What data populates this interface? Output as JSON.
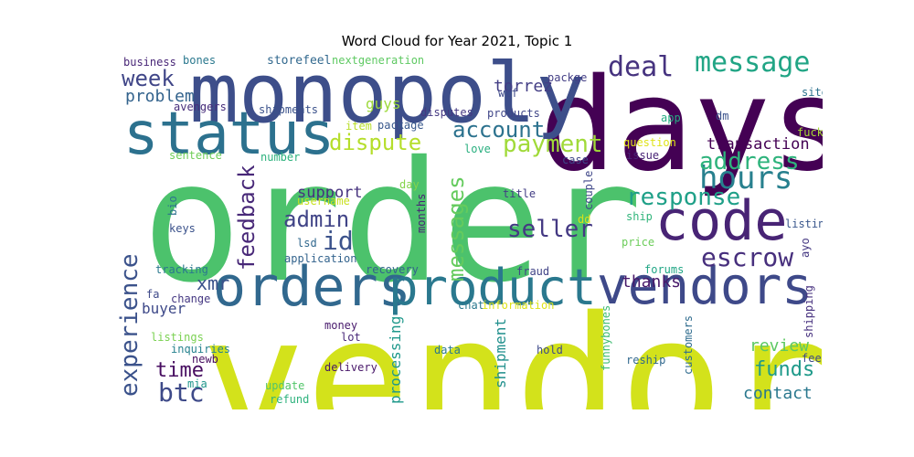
{
  "chart_data": {
    "type": "wordcloud",
    "title": "Word Cloud for Year 2021, Topic 1",
    "words": [
      {
        "text": "vendor",
        "weight": 100,
        "color": "#d3e21b",
        "vertical": false
      },
      {
        "text": "order",
        "weight": 96,
        "color": "#4cc26c",
        "vertical": false
      },
      {
        "text": "days",
        "weight": 72,
        "color": "#440154",
        "vertical": false
      },
      {
        "text": "monopoly",
        "weight": 52,
        "color": "#3d4e8a",
        "vertical": false
      },
      {
        "text": "orders",
        "weight": 48,
        "color": "#31688e",
        "vertical": false
      },
      {
        "text": "vendors",
        "weight": 44,
        "color": "#3e4989",
        "vertical": false
      },
      {
        "text": "product",
        "weight": 42,
        "color": "#2a788e",
        "vertical": false
      },
      {
        "text": "status",
        "weight": 42,
        "color": "#2c718e",
        "vertical": false
      },
      {
        "text": "code",
        "weight": 38,
        "color": "#482475",
        "vertical": false
      },
      {
        "text": "hours",
        "weight": 28,
        "color": "#27808e",
        "vertical": false
      },
      {
        "text": "dispute",
        "weight": 22,
        "color": "#b5de2b",
        "vertical": false
      },
      {
        "text": "payment",
        "weight": 22,
        "color": "#a0da39",
        "vertical": false
      },
      {
        "text": "deal",
        "weight": 22,
        "color": "#46337f",
        "vertical": false
      },
      {
        "text": "message",
        "weight": 22,
        "color": "#21a585",
        "vertical": false
      },
      {
        "text": "address",
        "weight": 22,
        "color": "#2eb37c",
        "vertical": false
      },
      {
        "text": "response",
        "weight": 20,
        "color": "#1fa088",
        "vertical": false
      },
      {
        "text": "seller",
        "weight": 20,
        "color": "#443983",
        "vertical": false
      },
      {
        "text": "escrow",
        "weight": 20,
        "color": "#472f7d",
        "vertical": false
      },
      {
        "text": "messages",
        "weight": 20,
        "color": "#65cb5e",
        "vertical": true
      },
      {
        "text": "feedback",
        "weight": 20,
        "color": "#482878",
        "vertical": true
      },
      {
        "text": "experience",
        "weight": 20,
        "color": "#3b528b",
        "vertical": true
      },
      {
        "text": "account",
        "weight": 18,
        "color": "#2c728e",
        "vertical": false
      },
      {
        "text": "week",
        "weight": 18,
        "color": "#404688",
        "vertical": false
      },
      {
        "text": "admin",
        "weight": 18,
        "color": "#414487",
        "vertical": false
      },
      {
        "text": "id",
        "weight": 18,
        "color": "#3b528b",
        "vertical": false
      },
      {
        "text": "btc",
        "weight": 18,
        "color": "#3e4a89",
        "vertical": false
      },
      {
        "text": "time",
        "weight": 18,
        "color": "#470d60",
        "vertical": false
      },
      {
        "text": "funds",
        "weight": 18,
        "color": "#1f9a8a",
        "vertical": false
      },
      {
        "text": "xmr",
        "weight": 16,
        "color": "#3b528b",
        "vertical": false
      },
      {
        "text": "problem",
        "weight": 15,
        "color": "#33638d",
        "vertical": false
      },
      {
        "text": "torrez",
        "weight": 15,
        "color": "#433e85",
        "vertical": false
      },
      {
        "text": "support",
        "weight": 15,
        "color": "#46327e",
        "vertical": false
      },
      {
        "text": "transaction",
        "weight": 15,
        "color": "#440154",
        "vertical": false
      },
      {
        "text": "thanks",
        "weight": 15,
        "color": "#48186a",
        "vertical": false
      },
      {
        "text": "review",
        "weight": 15,
        "color": "#5cc863",
        "vertical": false
      },
      {
        "text": "contact",
        "weight": 15,
        "color": "#2a788e",
        "vertical": false
      },
      {
        "text": "processing",
        "weight": 15,
        "color": "#1f988b",
        "vertical": true
      },
      {
        "text": "shipment",
        "weight": 15,
        "color": "#21908d",
        "vertical": true
      },
      {
        "text": "guys",
        "weight": 14,
        "color": "#9dd93b",
        "vertical": false
      },
      {
        "text": "buyer",
        "weight": 13,
        "color": "#3e4989",
        "vertical": false
      },
      {
        "text": "storefeel",
        "weight": 12,
        "color": "#31688e",
        "vertical": false
      },
      {
        "text": "nextgeneration",
        "weight": 11,
        "color": "#5ec962",
        "vertical": false
      },
      {
        "text": "business",
        "weight": 11,
        "color": "#482677",
        "vertical": false
      },
      {
        "text": "bones",
        "weight": 11,
        "color": "#2a788e",
        "vertical": false
      },
      {
        "text": "packge",
        "weight": 11,
        "color": "#433e85",
        "vertical": false
      },
      {
        "text": "wtf",
        "weight": 11,
        "color": "#3e4a89",
        "vertical": false
      },
      {
        "text": "site",
        "weight": 11,
        "color": "#2c728e",
        "vertical": false
      },
      {
        "text": "avengers",
        "weight": 11,
        "color": "#472d7b",
        "vertical": false
      },
      {
        "text": "shipments",
        "weight": 11,
        "color": "#3b528b",
        "vertical": false
      },
      {
        "text": "disputes",
        "weight": 11,
        "color": "#453882",
        "vertical": false
      },
      {
        "text": "products",
        "weight": 11,
        "color": "#404688",
        "vertical": false
      },
      {
        "text": "item",
        "weight": 11,
        "color": "#b8de29",
        "vertical": false
      },
      {
        "text": "package",
        "weight": 11,
        "color": "#38588c",
        "vertical": false
      },
      {
        "text": "app",
        "weight": 11,
        "color": "#25ac82",
        "vertical": false
      },
      {
        "text": "dm",
        "weight": 11,
        "color": "#3b528b",
        "vertical": false
      },
      {
        "text": "fuck",
        "weight": 11,
        "color": "#a8db34",
        "vertical": false
      },
      {
        "text": "love",
        "weight": 11,
        "color": "#29af7f",
        "vertical": false
      },
      {
        "text": "question",
        "weight": 11,
        "color": "#dfe318",
        "vertical": false
      },
      {
        "text": "sentence",
        "weight": 11,
        "color": "#6ece58",
        "vertical": false
      },
      {
        "text": "number",
        "weight": 11,
        "color": "#2db27d",
        "vertical": false
      },
      {
        "text": "case",
        "weight": 11,
        "color": "#3f4788",
        "vertical": false
      },
      {
        "text": "issue",
        "weight": 11,
        "color": "#482475",
        "vertical": false
      },
      {
        "text": "day",
        "weight": 11,
        "color": "#84d44b",
        "vertical": false
      },
      {
        "text": "title",
        "weight": 11,
        "color": "#433e85",
        "vertical": false
      },
      {
        "text": "listing",
        "weight": 11,
        "color": "#39568c",
        "vertical": false
      },
      {
        "text": "username",
        "weight": 11,
        "color": "#c8e020",
        "vertical": false
      },
      {
        "text": "keys",
        "weight": 11,
        "color": "#3b528b",
        "vertical": false
      },
      {
        "text": "dd",
        "weight": 11,
        "color": "#d8e219",
        "vertical": false
      },
      {
        "text": "ship",
        "weight": 11,
        "color": "#31b57b",
        "vertical": false
      },
      {
        "text": "lsd",
        "weight": 11,
        "color": "#31688e",
        "vertical": false
      },
      {
        "text": "application",
        "weight": 11,
        "color": "#33638d",
        "vertical": false
      },
      {
        "text": "price",
        "weight": 11,
        "color": "#6ccd5a",
        "vertical": false
      },
      {
        "text": "tracking",
        "weight": 11,
        "color": "#2a788e",
        "vertical": false
      },
      {
        "text": "money",
        "weight": 11,
        "color": "#481a6c",
        "vertical": false
      },
      {
        "text": "recovery",
        "weight": 11,
        "color": "#33638d",
        "vertical": false
      },
      {
        "text": "fraud",
        "weight": 11,
        "color": "#414487",
        "vertical": false
      },
      {
        "text": "forums",
        "weight": 11,
        "color": "#21a685",
        "vertical": false
      },
      {
        "text": "fa",
        "weight": 11,
        "color": "#3e4989",
        "vertical": false
      },
      {
        "text": "change",
        "weight": 11,
        "color": "#453882",
        "vertical": false
      },
      {
        "text": "chat",
        "weight": 11,
        "color": "#2a788e",
        "vertical": false
      },
      {
        "text": "information",
        "weight": 11,
        "color": "#dde318",
        "vertical": false
      },
      {
        "text": "listings",
        "weight": 11,
        "color": "#7ad151",
        "vertical": false
      },
      {
        "text": "inquiries",
        "weight": 11,
        "color": "#26828e",
        "vertical": false
      },
      {
        "text": "newb",
        "weight": 11,
        "color": "#470d60",
        "vertical": false
      },
      {
        "text": "mia",
        "weight": 11,
        "color": "#1f968b",
        "vertical": false
      },
      {
        "text": "lot",
        "weight": 11,
        "color": "#482878",
        "vertical": false
      },
      {
        "text": "delivery",
        "weight": 11,
        "color": "#481769",
        "vertical": false
      },
      {
        "text": "update",
        "weight": 11,
        "color": "#52c569",
        "vertical": false
      },
      {
        "text": "refund",
        "weight": 11,
        "color": "#2db27d",
        "vertical": false
      },
      {
        "text": "data",
        "weight": 11,
        "color": "#2a788e",
        "vertical": false
      },
      {
        "text": "hold",
        "weight": 11,
        "color": "#3e4a89",
        "vertical": false
      },
      {
        "text": "reship",
        "weight": 11,
        "color": "#31688e",
        "vertical": false
      },
      {
        "text": "fee",
        "weight": 11,
        "color": "#3e4989",
        "vertical": false
      },
      {
        "text": "months",
        "weight": 11,
        "color": "#482475",
        "vertical": true
      },
      {
        "text": "couple",
        "weight": 11,
        "color": "#3f4788",
        "vertical": true
      },
      {
        "text": "bio",
        "weight": 11,
        "color": "#2c728e",
        "vertical": true
      },
      {
        "text": "ayo",
        "weight": 11,
        "color": "#453882",
        "vertical": true
      },
      {
        "text": "shipping",
        "weight": 11,
        "color": "#46307e",
        "vertical": true
      },
      {
        "text": "funnybones",
        "weight": 11,
        "color": "#3fbc73",
        "vertical": true
      },
      {
        "text": "customers",
        "weight": 11,
        "color": "#2f6c8e",
        "vertical": true
      }
    ]
  }
}
